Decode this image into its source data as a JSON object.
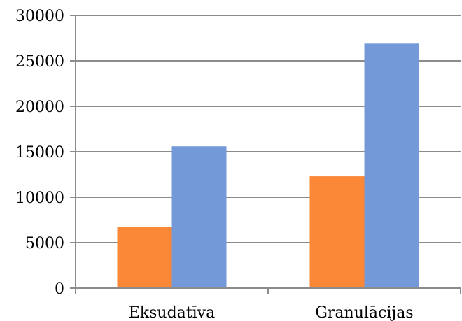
{
  "chart_data": {
    "type": "bar",
    "categories": [
      "Eksudatīva",
      "Granulācijas"
    ],
    "series": [
      {
        "values": [
          6700,
          12300
        ],
        "color": "#fb8837"
      },
      {
        "values": [
          15600,
          26900
        ],
        "color": "#7499d9"
      }
    ],
    "yticks": [
      "0",
      "5000",
      "10000",
      "15000",
      "20000",
      "25000",
      "30000"
    ],
    "ylim": [
      0,
      30000
    ],
    "grid": true,
    "legend": "none"
  }
}
